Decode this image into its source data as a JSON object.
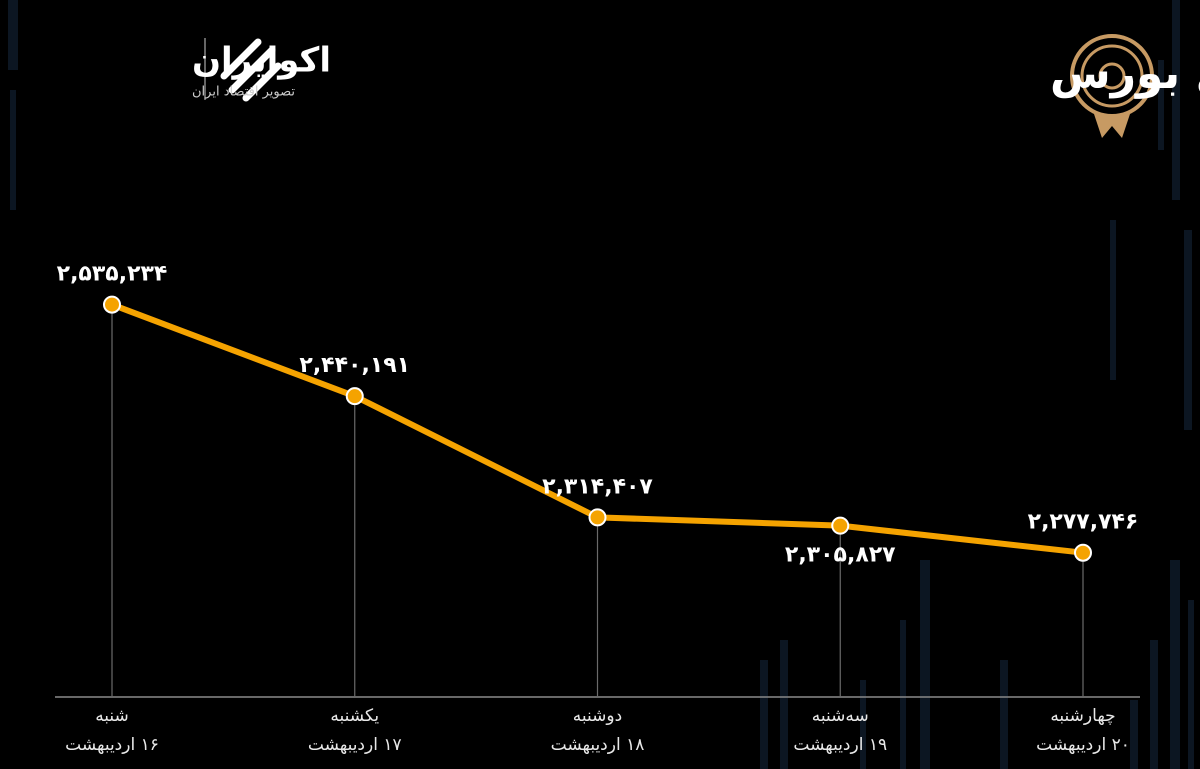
{
  "header": {
    "brand": "اکوایران",
    "tagline": "تصویر اقتصاد ایران"
  },
  "chart_data": {
    "type": "line",
    "title": "روند هفته شاخص کل بورس",
    "categories": [
      "شنبه",
      "یکشنبه",
      "دوشنبه",
      "سه‌شنبه",
      "چهارشنبه"
    ],
    "dates": [
      "۱۶ اردیبهشت",
      "۱۷ اردیبهشت",
      "۱۸ اردیبهشت",
      "۱۹ اردیبهشت",
      "۲۰ اردیبهشت"
    ],
    "values": [
      2535234,
      2440191,
      2314407,
      2305827,
      2277746
    ],
    "value_labels": [
      "۲,۵۳۵,۲۳۴",
      "۲,۴۴۰,۱۹۱",
      "۲,۳۱۴,۴۰۷",
      "۲,۳۰۵,۸۲۷",
      "۲,۲۷۷,۷۴۶"
    ],
    "color": "#f5a300",
    "ylim": [
      2128000,
      2650000
    ]
  }
}
